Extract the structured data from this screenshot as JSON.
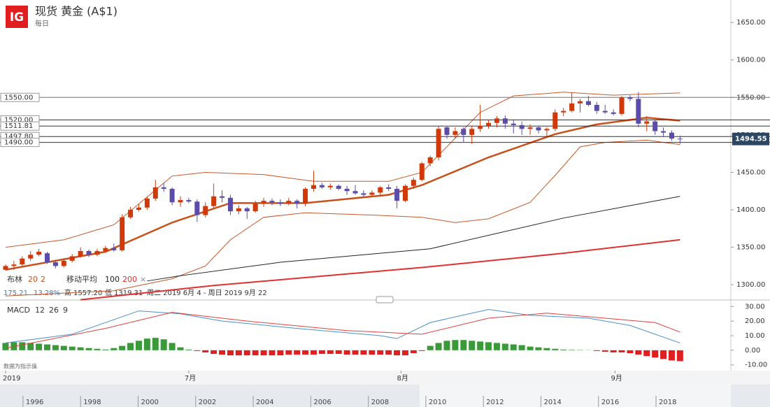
{
  "header": {
    "logo": "IG"
  },
  "chart_data": [
    {
      "type": "candlestick",
      "title": "现货 黄金 (A$1)",
      "subtitle": "每日",
      "xlim": [
        -0.67,
        87.1
      ],
      "ylim": [
        1280,
        1680
      ],
      "yticks": [
        {
          "value": 1650,
          "label": "1650.00"
        },
        {
          "value": 1600,
          "label": "1600.00"
        },
        {
          "value": 1550,
          "label": "1550.00"
        },
        {
          "value": 1500,
          "label": "1500.00"
        },
        {
          "value": 1450,
          "label": "1450.00"
        },
        {
          "value": 1400,
          "label": "1400.00"
        },
        {
          "value": 1350,
          "label": "1350.00"
        },
        {
          "value": 1300,
          "label": "1300.00"
        }
      ],
      "xticks": [
        {
          "value": 0,
          "label": "2019"
        },
        {
          "value": 22,
          "label": "7月"
        },
        {
          "value": 47.5,
          "label": "8月"
        },
        {
          "value": 73.2,
          "label": "9月"
        }
      ],
      "up_color": "#d03a0b",
      "down_color": "#5a4ca8",
      "open": [
        1320,
        1325,
        1327,
        1335,
        1340,
        1342,
        1330,
        1325,
        1332,
        1338,
        1345,
        1340,
        1345,
        1349,
        1346,
        1390,
        1400,
        1403,
        1415,
        1430,
        1428,
        1410,
        1413,
        1411,
        1393,
        1405,
        1418,
        1416,
        1398,
        1402,
        1398,
        1408,
        1412,
        1410,
        1408,
        1412,
        1408,
        1428,
        1433,
        1430,
        1432,
        1428,
        1425,
        1422,
        1420,
        1423,
        1430,
        1428,
        1412,
        1432,
        1440,
        1462,
        1470,
        1510,
        1500,
        1508,
        1500,
        1508,
        1512,
        1516,
        1522,
        1515,
        1513,
        1508,
        1510,
        1506,
        1508,
        1530,
        1532,
        1542,
        1545,
        1540,
        1532,
        1530,
        1528,
        1550,
        1548,
        1515,
        1518,
        1505,
        1503,
        1495
      ],
      "high": [
        1327,
        1332,
        1338,
        1345,
        1348,
        1344,
        1333,
        1335,
        1341,
        1350,
        1347,
        1348,
        1352,
        1355,
        1394,
        1404,
        1408,
        1418,
        1440,
        1436,
        1430,
        1418,
        1416,
        1414,
        1410,
        1435,
        1426,
        1420,
        1406,
        1404,
        1412,
        1416,
        1415,
        1414,
        1416,
        1414,
        1430,
        1452,
        1436,
        1435,
        1434,
        1432,
        1433,
        1426,
        1426,
        1432,
        1434,
        1432,
        1434,
        1443,
        1464,
        1472,
        1512,
        1512,
        1510,
        1510,
        1512,
        1540,
        1520,
        1525,
        1526,
        1520,
        1518,
        1514,
        1512,
        1510,
        1534,
        1536,
        1556,
        1548,
        1552,
        1544,
        1540,
        1534,
        1552,
        1553,
        1557.2,
        1525,
        1520,
        1510,
        1506,
        1499
      ],
      "low": [
        1319.31,
        1320,
        1325,
        1332,
        1338,
        1328,
        1322,
        1323,
        1330,
        1336,
        1337,
        1338,
        1343,
        1344,
        1344,
        1388,
        1398,
        1400,
        1412,
        1424,
        1406,
        1404,
        1409,
        1384,
        1390,
        1402,
        1410,
        1393,
        1394,
        1388,
        1396,
        1404,
        1406,
        1405,
        1406,
        1402,
        1405,
        1424,
        1428,
        1427,
        1426,
        1420,
        1420,
        1417,
        1418,
        1420,
        1425,
        1402,
        1410,
        1428,
        1438,
        1458,
        1466,
        1495,
        1495,
        1490,
        1488,
        1504,
        1508,
        1510,
        1508,
        1502,
        1500,
        1500,
        1502,
        1498,
        1505,
        1525,
        1530,
        1530,
        1538,
        1528,
        1528,
        1526,
        1526,
        1545,
        1510,
        1505,
        1500,
        1498,
        1492,
        1488
      ],
      "close": [
        1325,
        1327,
        1335,
        1340,
        1344,
        1330,
        1325,
        1332,
        1338,
        1345,
        1340,
        1345,
        1349,
        1346,
        1390,
        1400,
        1403,
        1415,
        1430,
        1428,
        1410,
        1413,
        1411,
        1393,
        1405,
        1418,
        1416,
        1398,
        1402,
        1398,
        1408,
        1412,
        1410,
        1408,
        1412,
        1408,
        1428,
        1433,
        1430,
        1432,
        1428,
        1425,
        1422,
        1420,
        1423,
        1430,
        1428,
        1412,
        1432,
        1440,
        1462,
        1470,
        1508,
        1500,
        1505,
        1500,
        1508,
        1512,
        1516,
        1522,
        1515,
        1513,
        1508,
        1510,
        1506,
        1508,
        1530,
        1532,
        1542,
        1545,
        1540,
        1532,
        1530,
        1528,
        1550,
        1548,
        1515,
        1518,
        1505,
        1503,
        1495,
        1494.55
      ],
      "series": [
        {
          "color": "#c8582a",
          "width": 1,
          "x": [
            0,
            7,
            13,
            20,
            24,
            31,
            37,
            46,
            50,
            57,
            61,
            67,
            73,
            81
          ],
          "values": [
            1350,
            1360,
            1380,
            1445,
            1450,
            1447,
            1438,
            1438,
            1450,
            1530,
            1552,
            1557,
            1553,
            1556
          ]
        },
        {
          "color": "#c8582a",
          "width": 1,
          "x": [
            0,
            13,
            20,
            24,
            27,
            31,
            36,
            44,
            50,
            54,
            58,
            63,
            66,
            69,
            72,
            77,
            81
          ],
          "values": [
            1285,
            1292,
            1308,
            1325,
            1360,
            1390,
            1396,
            1393,
            1390,
            1383,
            1388,
            1410,
            1446,
            1484,
            1490,
            1493,
            1487
          ]
        },
        {
          "color": "#c8501a",
          "width": 2.5,
          "x": [
            0,
            12,
            20,
            27,
            36,
            46,
            50,
            58,
            66,
            71,
            77,
            81
          ],
          "values": [
            1320,
            1344,
            1383,
            1409,
            1409,
            1420,
            1433,
            1470,
            1501,
            1514,
            1523,
            1519
          ]
        },
        {
          "color": "#222222",
          "width": 1,
          "x": [
            17,
            21,
            33,
            51,
            67,
            81
          ],
          "values": [
            1305,
            1312,
            1330,
            1348,
            1389,
            1418
          ]
        },
        {
          "color": "#e03030",
          "width": 2,
          "x": [
            9,
            25,
            50,
            67,
            81
          ],
          "values": [
            1280,
            1299,
            1323,
            1342,
            1360
          ]
        }
      ],
      "price_lines": [
        {
          "value": 1550,
          "label": "1550.00"
        },
        {
          "value": 1520,
          "label": "1520.00"
        },
        {
          "value": 1511.81,
          "label": "1511.81"
        },
        {
          "value": 1497.8,
          "label": "1497.80"
        },
        {
          "value": 1490,
          "label": "1490.00"
        }
      ],
      "last_price": 1494.55,
      "legend": {
        "bollinger": "布林",
        "bollinger_period": "20",
        "bollinger_std": "2",
        "ma": "移动平均",
        "ma_fast": "100",
        "ma_slow": "200",
        "close": "×"
      },
      "stats": {
        "change": "175.21",
        "change_pct": "13.28%",
        "high_label": "高",
        "high": "1557.20",
        "low_label": "低",
        "low": "1319.31",
        "range": "周二 2019 6月 4 - 周日 2019 9月 22"
      }
    },
    {
      "type": "macd",
      "title": "MACD",
      "params": [
        "12",
        "26",
        "9"
      ],
      "note": "数据为指示值",
      "xlim": [
        -0.67,
        87.1
      ],
      "ylim": [
        -14,
        34
      ],
      "yticks": [
        {
          "value": 30,
          "label": "30.00"
        },
        {
          "value": 20,
          "label": "20.00"
        },
        {
          "value": 10,
          "label": "10.00"
        },
        {
          "value": 0,
          "label": "0.00"
        },
        {
          "value": -10,
          "label": "-10.00"
        }
      ],
      "series": [
        {
          "color": "#4a90c8",
          "x": [
            0,
            8,
            16,
            21,
            26,
            35,
            45,
            47,
            51,
            58,
            63,
            70,
            75,
            81
          ],
          "values": [
            5,
            11,
            27,
            25,
            20,
            15,
            10,
            8,
            19,
            28,
            24,
            22,
            17,
            5
          ]
        },
        {
          "color": "#e04040",
          "x": [
            0,
            12,
            20,
            29,
            41,
            50,
            58,
            65,
            72,
            78,
            81
          ],
          "values": [
            1.5,
            15,
            26,
            20,
            13.5,
            11,
            22,
            25.5,
            22,
            19,
            12.5
          ]
        }
      ],
      "pos_color": "#3a9a3a",
      "neg_color": "#e02020",
      "histogram": [
        5,
        5.5,
        5.5,
        5,
        4.5,
        4,
        3.5,
        3,
        2.5,
        2,
        1.5,
        1,
        0.5,
        1.5,
        3,
        5,
        6.5,
        8,
        8.5,
        7.5,
        5,
        2,
        0.5,
        -0.5,
        -1.5,
        -2.5,
        -3,
        -3.5,
        -3.5,
        -3.5,
        -3.5,
        -3.5,
        -3.5,
        -3.5,
        -3,
        -3,
        -3,
        -3,
        -2.5,
        -2.5,
        -2.5,
        -3,
        -3,
        -3,
        -3,
        -3,
        -3,
        -3.5,
        -3.5,
        -2,
        -0.5,
        3,
        5,
        6.5,
        7,
        7,
        6.5,
        6,
        5.5,
        5,
        4.5,
        4,
        3.5,
        2.5,
        2,
        1.5,
        1,
        0.5,
        0.3,
        0.2,
        0.1,
        -0.5,
        -1,
        -1.5,
        -1.5,
        -2,
        -3,
        -4,
        -5,
        -6,
        -7,
        -7.5
      ]
    },
    {
      "type": "navigator",
      "xlim": [
        1995.2,
        2020.6
      ],
      "xticks": [
        1996,
        1998,
        2000,
        2002,
        2004,
        2006,
        2008,
        2010,
        2012,
        2014,
        2016,
        2018
      ]
    }
  ]
}
